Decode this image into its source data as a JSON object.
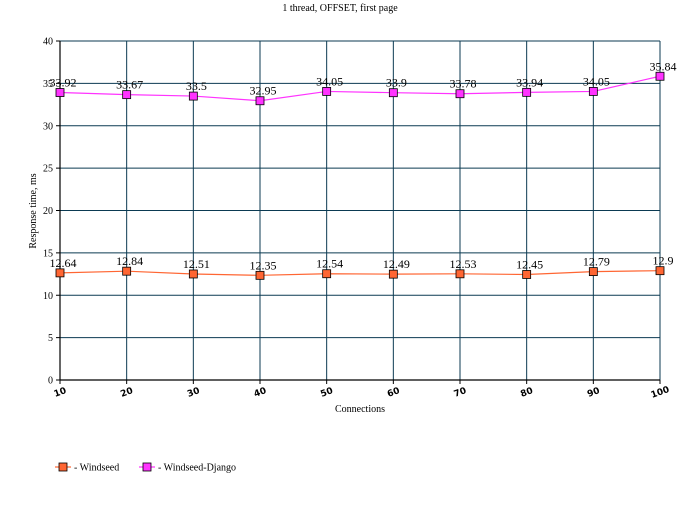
{
  "chart_data": {
    "type": "line",
    "title": "1 thread, OFFSET, first page",
    "xlabel": "Connections",
    "ylabel": "Response time, ms",
    "x": [
      10,
      20,
      30,
      40,
      50,
      60,
      70,
      80,
      90,
      100
    ],
    "ylim": [
      0,
      40
    ],
    "yticks": [
      0,
      5,
      10,
      15,
      20,
      25,
      30,
      35,
      40
    ],
    "grid": true,
    "legend_position": "bottom-left",
    "series": [
      {
        "name": "Windseed",
        "color": "#ff6633",
        "values": [
          12.64,
          12.84,
          12.51,
          12.35,
          12.54,
          12.49,
          12.53,
          12.45,
          12.79,
          12.9
        ],
        "labels": [
          "12.64",
          "12.84",
          "12.51",
          "12.35",
          "12.54",
          "12.49",
          "12.53",
          "12.45",
          "12.79",
          "12.9"
        ]
      },
      {
        "name": "Windseed-Django",
        "color": "#ff33ff",
        "values": [
          33.92,
          33.67,
          33.5,
          32.95,
          34.05,
          33.9,
          33.78,
          33.94,
          34.05,
          35.84
        ],
        "labels": [
          "33.92",
          "33.67",
          "33.5",
          "32.95",
          "34.05",
          "33.9",
          "33.78",
          "33.94",
          "34.05",
          "35.84"
        ]
      }
    ]
  }
}
